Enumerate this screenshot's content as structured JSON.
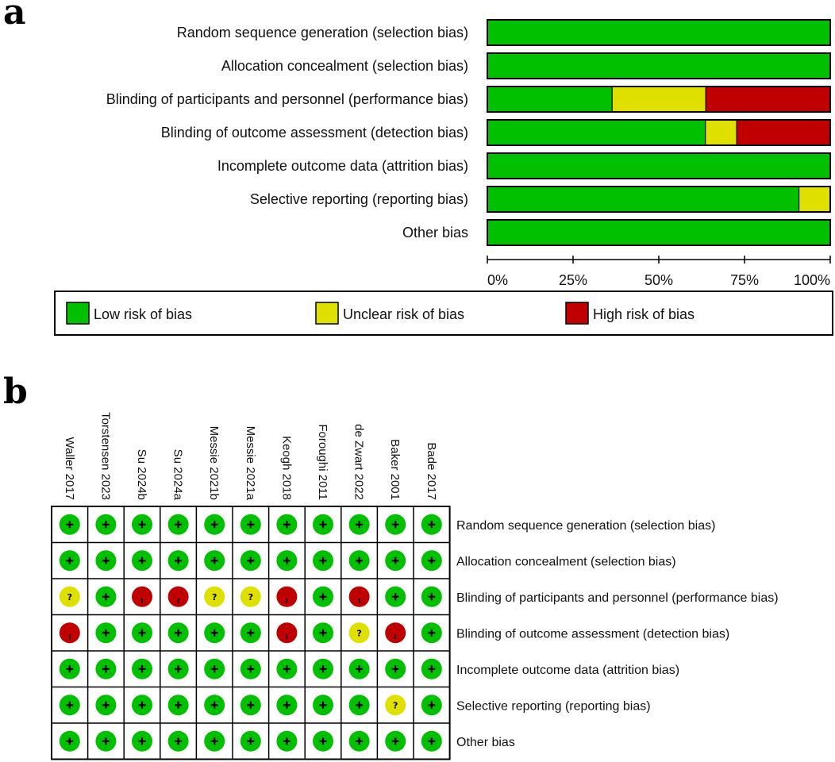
{
  "chart_data": [
    {
      "type": "bar",
      "subtype": "stacked-horizontal-percent",
      "panel_label": "a",
      "categories": [
        "Random sequence generation (selection bias)",
        "Allocation concealment (selection bias)",
        "Blinding of participants and personnel (performance bias)",
        "Blinding of outcome assessment (detection bias)",
        "Incomplete outcome data (attrition bias)",
        "Selective reporting (reporting bias)",
        "Other bias"
      ],
      "series": [
        {
          "name": "Low risk of bias",
          "color": "#00c000",
          "values": [
            100,
            100,
            36.4,
            63.6,
            100,
            90.9,
            100
          ]
        },
        {
          "name": "Unclear risk of bias",
          "color": "#e0e000",
          "values": [
            0,
            0,
            27.3,
            9.1,
            0,
            9.1,
            0
          ]
        },
        {
          "name": "High risk of bias",
          "color": "#c00000",
          "values": [
            0,
            0,
            36.4,
            27.3,
            0,
            0,
            0
          ]
        }
      ],
      "xlim": [
        0,
        100
      ],
      "xticks": [
        0,
        25,
        50,
        75,
        100
      ],
      "xtick_labels": [
        "0%",
        "25%",
        "50%",
        "75%",
        "100%"
      ],
      "legend_position": "bottom",
      "legend": [
        "Low risk of bias",
        "Unclear risk of bias",
        "High risk of bias"
      ]
    },
    {
      "type": "table",
      "subtype": "risk-of-bias-summary",
      "panel_label": "b",
      "studies": [
        "Waller 2017",
        "Torstensen 2023",
        "Su 2024b",
        "Su 2024a",
        "Messie 2021b",
        "Messie 2021a",
        "Keogh 2018",
        "Foroughi 2011",
        "de Zwart 2022",
        "Baker 2001",
        "Bade 2017"
      ],
      "domains": [
        "Random sequence generation (selection bias)",
        "Allocation concealment (selection bias)",
        "Blinding of participants and personnel (performance bias)",
        "Blinding of outcome assessment (detection bias)",
        "Incomplete outcome data (attrition bias)",
        "Selective reporting (reporting bias)",
        "Other bias"
      ],
      "judgements": [
        [
          "+",
          "+",
          "+",
          "+",
          "+",
          "+",
          "+",
          "+",
          "+",
          "+",
          "+"
        ],
        [
          "+",
          "+",
          "+",
          "+",
          "+",
          "+",
          "+",
          "+",
          "+",
          "+",
          "+"
        ],
        [
          "?",
          "+",
          "-",
          "-",
          "?",
          "?",
          "-",
          "+",
          "-",
          "+",
          "+"
        ],
        [
          "-",
          "+",
          "+",
          "+",
          "+",
          "+",
          "-",
          "+",
          "?",
          "-",
          "+"
        ],
        [
          "+",
          "+",
          "+",
          "+",
          "+",
          "+",
          "+",
          "+",
          "+",
          "+",
          "+"
        ],
        [
          "+",
          "+",
          "+",
          "+",
          "+",
          "+",
          "+",
          "+",
          "+",
          "?",
          "+"
        ],
        [
          "+",
          "+",
          "+",
          "+",
          "+",
          "+",
          "+",
          "+",
          "+",
          "+",
          "+"
        ]
      ],
      "symbol_colors": {
        "+": "#00c000",
        "?": "#e0e000",
        "-": "#c00000"
      }
    }
  ]
}
